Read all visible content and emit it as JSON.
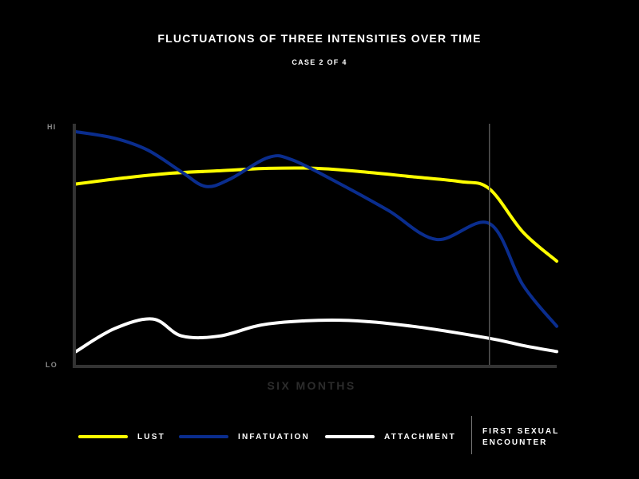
{
  "chart_data": {
    "type": "line",
    "title": "FLUCTUATIONS OF THREE INTENSITIES OVER TIME",
    "subtitle": "CASE 2 OF 4",
    "xlabel": "SIX MONTHS",
    "y_tick_labels": {
      "high": "HI",
      "low": "LO"
    },
    "xlim": [
      0,
      100
    ],
    "ylim": [
      0,
      100
    ],
    "grid": false,
    "legend_position": "bottom",
    "marker": {
      "x": 86,
      "label_line1": "FIRST SEXUAL",
      "label_line2": "ENCOUNTER"
    },
    "series": [
      {
        "name": "LUST",
        "color": "#ffff00",
        "points": [
          [
            0,
            75
          ],
          [
            10,
            77.5
          ],
          [
            20,
            79.5
          ],
          [
            30,
            80.5
          ],
          [
            40,
            81.5
          ],
          [
            50,
            81.5
          ],
          [
            60,
            80
          ],
          [
            70,
            78
          ],
          [
            80,
            76
          ],
          [
            86,
            73
          ],
          [
            93,
            55
          ],
          [
            100,
            43
          ]
        ]
      },
      {
        "name": "INFATUATION",
        "color": "#0a2d8e",
        "points": [
          [
            0,
            96.7
          ],
          [
            8,
            94
          ],
          [
            15,
            89
          ],
          [
            22,
            80
          ],
          [
            27,
            74
          ],
          [
            32,
            77
          ],
          [
            40,
            86
          ],
          [
            45,
            85
          ],
          [
            55,
            75
          ],
          [
            65,
            64
          ],
          [
            75,
            52
          ],
          [
            86,
            58.6
          ],
          [
            93,
            33
          ],
          [
            100,
            16
          ]
        ]
      },
      {
        "name": "ATTACHMENT",
        "color": "#ffffff",
        "points": [
          [
            0,
            5.5
          ],
          [
            8,
            15
          ],
          [
            16,
            19
          ],
          [
            22,
            12
          ],
          [
            30,
            12
          ],
          [
            40,
            17
          ],
          [
            55,
            18.5
          ],
          [
            70,
            16
          ],
          [
            86,
            11
          ],
          [
            93,
            8
          ],
          [
            100,
            5.5
          ]
        ]
      }
    ]
  }
}
